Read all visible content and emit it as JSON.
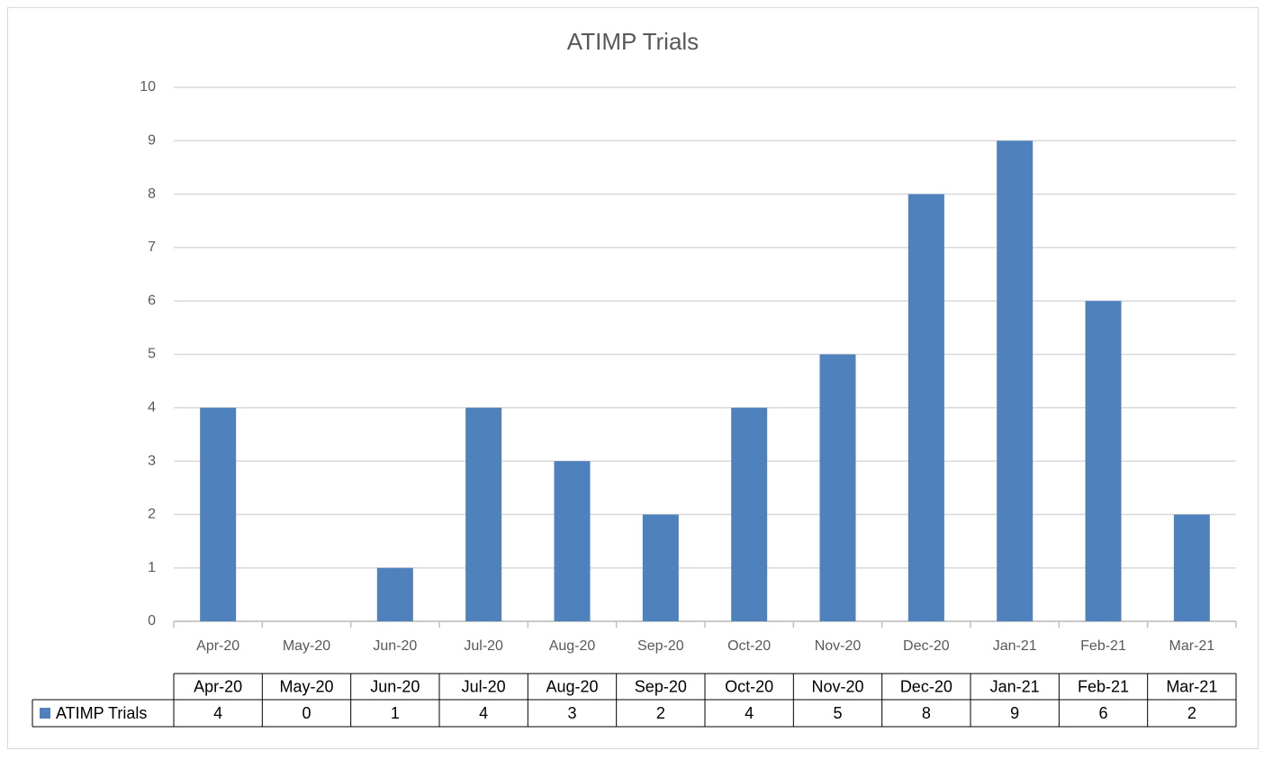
{
  "chart_data": {
    "type": "bar",
    "title": "ATIMP Trials",
    "categories": [
      "Apr-20",
      "May-20",
      "Jun-20",
      "Jul-20",
      "Aug-20",
      "Sep-20",
      "Oct-20",
      "Nov-20",
      "Dec-20",
      "Jan-21",
      "Feb-21",
      "Mar-21"
    ],
    "series": [
      {
        "name": "ATIMP Trials",
        "color": "#4f81bd",
        "values": [
          4,
          0,
          1,
          4,
          3,
          2,
          4,
          5,
          8,
          9,
          6,
          2
        ]
      }
    ],
    "ylim": [
      0,
      10
    ],
    "yticks": [
      0,
      1,
      2,
      3,
      4,
      5,
      6,
      7,
      8,
      9,
      10
    ],
    "grid": true
  }
}
